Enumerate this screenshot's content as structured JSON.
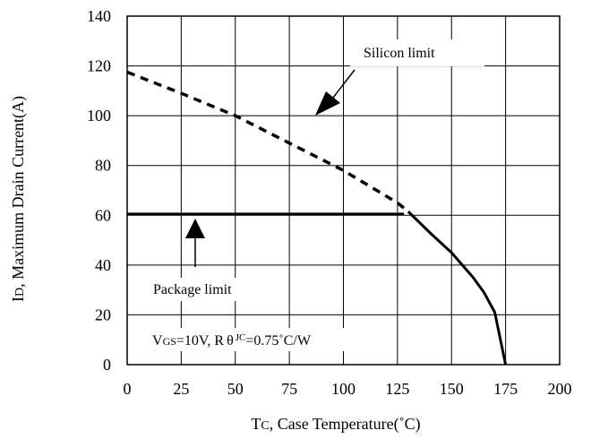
{
  "chart_data": {
    "type": "line",
    "xlabel": {
      "main": "T",
      "sub": "C",
      "rest": ", Case Temperature(˚C)"
    },
    "ylabel": {
      "main": "I",
      "sub": "D",
      "rest": ", Maximum Drain Current(A)"
    },
    "xlim": [
      0,
      200
    ],
    "ylim": [
      0,
      140
    ],
    "x_ticks": [
      "0",
      "25",
      "50",
      "75",
      "100",
      "125",
      "150",
      "175",
      "200"
    ],
    "y_ticks": [
      "0",
      "20",
      "40",
      "60",
      "80",
      "100",
      "120",
      "140"
    ],
    "grid": true,
    "series": [
      {
        "name": "Silicon limit",
        "style": "dashed",
        "x": [
          0,
          25,
          50,
          75,
          100,
          125,
          130
        ],
        "y": [
          117.5,
          109,
          100,
          89,
          78,
          65,
          61.5
        ]
      },
      {
        "name": "Package limit",
        "style": "solid",
        "x": [
          0,
          128
        ],
        "y": [
          60.5,
          60.5
        ]
      },
      {
        "name": "",
        "style": "solid",
        "x": [
          130,
          140,
          150,
          160,
          165,
          170,
          175
        ],
        "y": [
          61.5,
          53,
          45,
          35,
          29,
          21,
          0
        ]
      }
    ],
    "annotations": {
      "silicon": "Silicon limit",
      "package": "Package limit",
      "conditions": {
        "vgs_main": "V",
        "vgs_sub": "GS",
        "vgs_val": "=10V, R",
        "theta": "θ",
        "jc_sub": "JC",
        "rjc_val": "=0.75˚C/W"
      }
    }
  }
}
